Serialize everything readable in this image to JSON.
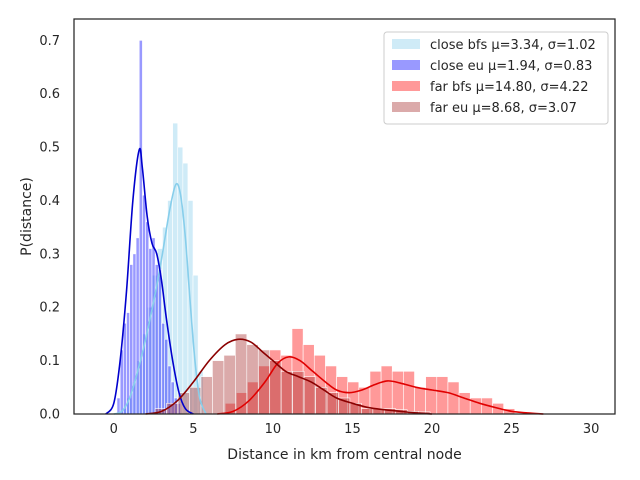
{
  "chart_data": {
    "type": "histogram+kde",
    "xlabel": "Distance in km from central node",
    "ylabel": "P(distance)",
    "xlim": [
      -2.5,
      31.5
    ],
    "ylim": [
      0,
      0.74
    ],
    "xticks": [
      0,
      5,
      10,
      15,
      20,
      25,
      30
    ],
    "yticks": [
      0.0,
      0.1,
      0.2,
      0.3,
      0.4,
      0.5,
      0.6,
      0.7
    ],
    "grid": false,
    "legend_position": "top-right",
    "series": [
      {
        "name": "close bfs μ=3.34, σ=1.02",
        "bar_color": "#87ceeb",
        "kde_color": "#87ceeb",
        "bin_width": 0.32,
        "bins": [
          [
            0.5,
            0.01
          ],
          [
            0.82,
            0.03
          ],
          [
            1.14,
            0.06
          ],
          [
            1.46,
            0.1
          ],
          [
            1.78,
            0.15
          ],
          [
            2.1,
            0.2
          ],
          [
            2.42,
            0.26
          ],
          [
            2.74,
            0.31
          ],
          [
            3.06,
            0.35
          ],
          [
            3.38,
            0.4
          ],
          [
            3.7,
            0.545
          ],
          [
            4.02,
            0.5
          ],
          [
            4.34,
            0.47
          ],
          [
            4.66,
            0.4
          ],
          [
            4.98,
            0.26
          ],
          [
            5.3,
            0.08
          ]
        ],
        "kde": [
          [
            0,
            0
          ],
          [
            0.5,
            0.005
          ],
          [
            1,
            0.03
          ],
          [
            1.5,
            0.08
          ],
          [
            2,
            0.14
          ],
          [
            2.5,
            0.21
          ],
          [
            3,
            0.29
          ],
          [
            3.5,
            0.38
          ],
          [
            3.9,
            0.43
          ],
          [
            4.2,
            0.41
          ],
          [
            4.5,
            0.33
          ],
          [
            4.8,
            0.21
          ],
          [
            5.1,
            0.1
          ],
          [
            5.4,
            0.03
          ],
          [
            5.8,
            0
          ]
        ]
      },
      {
        "name": "close eu μ=1.94, σ=0.83",
        "bar_color": "#0000ff",
        "kde_color": "#0000cd",
        "bin_width": 0.2,
        "bins": [
          [
            0.2,
            0.03
          ],
          [
            0.4,
            0.12
          ],
          [
            0.6,
            0.17
          ],
          [
            0.8,
            0.19
          ],
          [
            1.0,
            0.28
          ],
          [
            1.2,
            0.3
          ],
          [
            1.4,
            0.33
          ],
          [
            1.6,
            0.7
          ],
          [
            1.8,
            0.41
          ],
          [
            2.0,
            0.36
          ],
          [
            2.2,
            0.31
          ],
          [
            2.4,
            0.33
          ],
          [
            2.6,
            0.28
          ],
          [
            2.8,
            0.27
          ],
          [
            3.0,
            0.17
          ],
          [
            3.2,
            0.14
          ],
          [
            3.4,
            0.09
          ],
          [
            3.6,
            0.06
          ],
          [
            3.8,
            0.03
          ],
          [
            4.0,
            0.02
          ]
        ],
        "kde": [
          [
            -0.5,
            0
          ],
          [
            0,
            0.02
          ],
          [
            0.4,
            0.1
          ],
          [
            0.8,
            0.23
          ],
          [
            1.2,
            0.4
          ],
          [
            1.6,
            0.495
          ],
          [
            1.8,
            0.46
          ],
          [
            2.1,
            0.37
          ],
          [
            2.4,
            0.32
          ],
          [
            2.7,
            0.3
          ],
          [
            3.0,
            0.25
          ],
          [
            3.3,
            0.18
          ],
          [
            3.7,
            0.1
          ],
          [
            4.1,
            0.04
          ],
          [
            4.5,
            0.01
          ],
          [
            5,
            0
          ]
        ]
      },
      {
        "name": "far bfs μ=14.80, σ=4.22",
        "bar_color": "#ff0000",
        "kde_color": "#e00000",
        "bin_width": 0.7,
        "bins": [
          [
            7.0,
            0.02
          ],
          [
            7.7,
            0.04
          ],
          [
            8.4,
            0.06
          ],
          [
            9.1,
            0.09
          ],
          [
            9.8,
            0.12
          ],
          [
            10.5,
            0.11
          ],
          [
            11.2,
            0.16
          ],
          [
            11.9,
            0.13
          ],
          [
            12.6,
            0.11
          ],
          [
            13.3,
            0.09
          ],
          [
            14.0,
            0.07
          ],
          [
            14.7,
            0.06
          ],
          [
            15.4,
            0.05
          ],
          [
            16.1,
            0.08
          ],
          [
            16.8,
            0.09
          ],
          [
            17.5,
            0.08
          ],
          [
            18.2,
            0.08
          ],
          [
            18.9,
            0.05
          ],
          [
            19.6,
            0.07
          ],
          [
            20.3,
            0.07
          ],
          [
            21.0,
            0.06
          ],
          [
            21.7,
            0.04
          ],
          [
            22.4,
            0.03
          ],
          [
            23.1,
            0.03
          ],
          [
            23.8,
            0.02
          ],
          [
            24.5,
            0.01
          ]
        ],
        "kde": [
          [
            6.5,
            0
          ],
          [
            7.5,
            0.005
          ],
          [
            8.5,
            0.025
          ],
          [
            9.5,
            0.06
          ],
          [
            10.3,
            0.095
          ],
          [
            11,
            0.107
          ],
          [
            11.7,
            0.1
          ],
          [
            12.5,
            0.08
          ],
          [
            13.3,
            0.06
          ],
          [
            14,
            0.045
          ],
          [
            14.8,
            0.04
          ],
          [
            15.6,
            0.045
          ],
          [
            16.4,
            0.055
          ],
          [
            17.2,
            0.062
          ],
          [
            18,
            0.058
          ],
          [
            19,
            0.05
          ],
          [
            20,
            0.045
          ],
          [
            21,
            0.04
          ],
          [
            22,
            0.03
          ],
          [
            23,
            0.02
          ],
          [
            24,
            0.012
          ],
          [
            25,
            0.005
          ],
          [
            26,
            0.002
          ],
          [
            27,
            0
          ]
        ]
      },
      {
        "name": "far eu μ=8.68, σ=3.07",
        "bar_color": "#a52a2a",
        "kde_color": "#8b0000",
        "bin_width": 0.72,
        "bins": [
          [
            2.6,
            0.01
          ],
          [
            3.32,
            0.02
          ],
          [
            4.04,
            0.04
          ],
          [
            4.76,
            0.05
          ],
          [
            5.48,
            0.07
          ],
          [
            6.2,
            0.1
          ],
          [
            6.92,
            0.11
          ],
          [
            7.64,
            0.15
          ],
          [
            8.36,
            0.13
          ],
          [
            9.08,
            0.12
          ],
          [
            9.8,
            0.1
          ],
          [
            10.52,
            0.08
          ],
          [
            11.24,
            0.08
          ],
          [
            11.96,
            0.07
          ],
          [
            12.68,
            0.05
          ],
          [
            13.4,
            0.04
          ],
          [
            14.12,
            0.03
          ],
          [
            14.84,
            0.02
          ],
          [
            15.56,
            0.01
          ],
          [
            16.28,
            0.01
          ],
          [
            17.0,
            0.01
          ],
          [
            17.72,
            0.008
          ],
          [
            18.44,
            0.005
          ],
          [
            19.16,
            0.004
          ]
        ],
        "kde": [
          [
            2,
            0
          ],
          [
            3,
            0.005
          ],
          [
            4,
            0.025
          ],
          [
            5,
            0.06
          ],
          [
            6,
            0.1
          ],
          [
            7,
            0.13
          ],
          [
            7.8,
            0.14
          ],
          [
            8.6,
            0.135
          ],
          [
            9.4,
            0.115
          ],
          [
            10,
            0.1
          ],
          [
            10.8,
            0.08
          ],
          [
            11.6,
            0.07
          ],
          [
            12.4,
            0.06
          ],
          [
            13.2,
            0.045
          ],
          [
            14,
            0.03
          ],
          [
            15,
            0.02
          ],
          [
            16,
            0.012
          ],
          [
            17,
            0.008
          ],
          [
            18,
            0.005
          ],
          [
            19,
            0.002
          ],
          [
            20,
            0
          ]
        ]
      }
    ]
  }
}
